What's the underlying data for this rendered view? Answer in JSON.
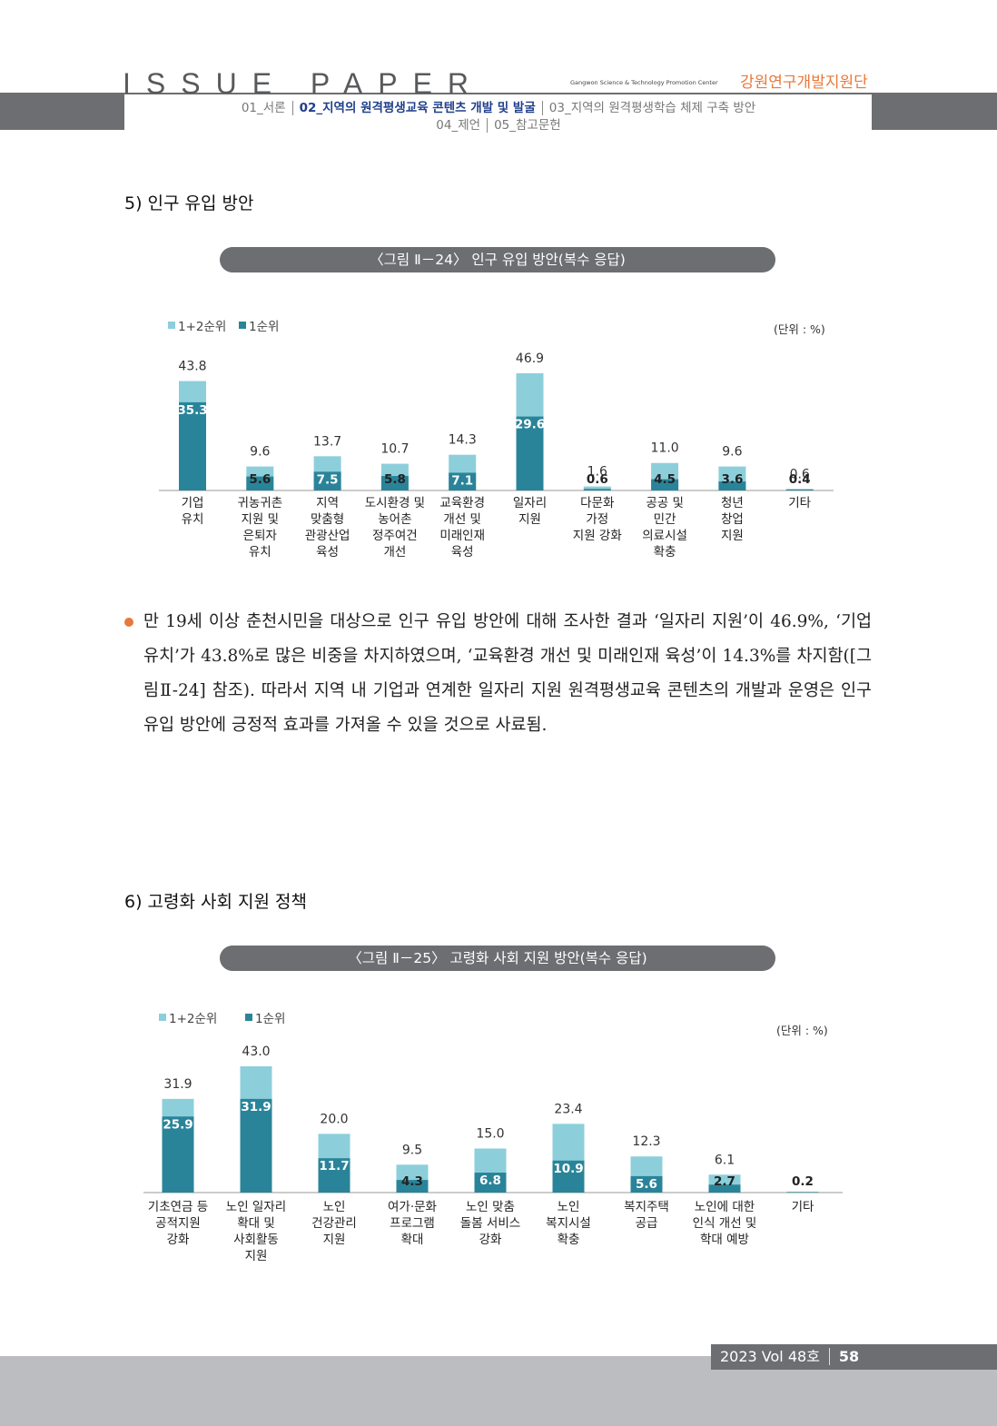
{
  "header": {
    "brand": "ISSUE PAPER",
    "org_en": "Gangwon Science & Technology Promotion Center",
    "org": "강원연구개발지원단",
    "nav": [
      "01_서론",
      "02_지역의 원격평생교육 콘텐츠 개발 및 발굴",
      "03_지역의 원격평생학습 체제 구축 방안",
      "04_제언",
      "05_참고문헌"
    ]
  },
  "sections": [
    {
      "heading": "5) 인구 유입 방안",
      "body": "만 19세 이상 춘천시민을 대상으로 인구 유입 방안에 대해 조사한 결과 ‘일자리 지원’이 46.9%, ‘기업 유치’가 43.8%로 많은 비중을 차지하였으며, ‘교육환경 개선 및 미래인재 육성’이 14.3%를 차지함([그림Ⅱ-24] 참조). 따라서 지역 내 기업과 연계한 일자리 지원 원격평생교육 콘텐츠의 개발과 운영은 인구 유입 방안에 긍정적 효과를 가져올 수 있을 것으로 사료됨."
    },
    {
      "heading": "6) 고령화 사회 지원 정책"
    }
  ],
  "chart_data": [
    {
      "type": "bar",
      "title": "〈그림 Ⅱ－24〉 인구 유입 방안(복수 응답)",
      "unit": "(단위 : %)",
      "categories": [
        "기업\n유치",
        "귀농귀촌\n지원 및\n은퇴자\n유치",
        "지역\n맞춤형\n관광산업\n육성",
        "도시환경 및\n농어촌\n정주여건\n개선",
        "교육환경\n개선 및\n미래인재\n육성",
        "일자리\n지원",
        "다문화\n가정\n지원 강화",
        "공공 및\n민간\n의료시설\n확충",
        "청년\n창업\n지원",
        "기타"
      ],
      "series": [
        {
          "name": "1+2순위",
          "color": "#8ccfdb",
          "values": [
            43.8,
            9.6,
            13.7,
            10.7,
            14.3,
            46.9,
            1.6,
            11.0,
            9.6,
            0.6
          ],
          "value_labels": [
            "43.8",
            "9.6",
            "13.7",
            "10.7",
            "14.3",
            "46.9",
            "1.6",
            "11.0",
            "9.6",
            "0.6"
          ]
        },
        {
          "name": "1순위",
          "color": "#2a8499",
          "values": [
            35.3,
            5.6,
            7.5,
            5.8,
            7.1,
            29.6,
            0.6,
            4.5,
            3.6,
            0.4
          ]
        }
      ]
    },
    {
      "type": "bar",
      "title": "〈그림 Ⅱ－25〉 고령화 사회 지원 방안(복수 응답)",
      "unit": "(단위 : %)",
      "categories": [
        "기초연금 등\n공적지원\n강화",
        "노인 일자리\n확대 및\n사회활동\n지원",
        "노인\n건강관리\n지원",
        "여가·문화\n프로그램\n확대",
        "노인 맞춤\n돌봄 서비스\n강화",
        "노인\n복지시설\n확충",
        "복지주택\n공급",
        "노인에 대한\n인식 개선 및\n학대 예방",
        "기타"
      ],
      "series": [
        {
          "name": "1+2순위",
          "color": "#8ccfdb",
          "values": [
            31.9,
            43.0,
            20.0,
            9.5,
            15.0,
            23.4,
            12.3,
            6.1,
            null
          ],
          "value_labels": [
            "31.9",
            "43.0",
            "20.0",
            "9.5",
            "15.0",
            "23.4",
            "12.3",
            "6.1",
            null
          ]
        },
        {
          "name": "1순위",
          "color": "#2a8499",
          "values": [
            25.9,
            31.9,
            11.7,
            4.3,
            6.8,
            10.9,
            5.6,
            2.7,
            0.2
          ]
        }
      ]
    }
  ],
  "footer": {
    "issue": "2023 Vol 48호",
    "page": "58"
  }
}
